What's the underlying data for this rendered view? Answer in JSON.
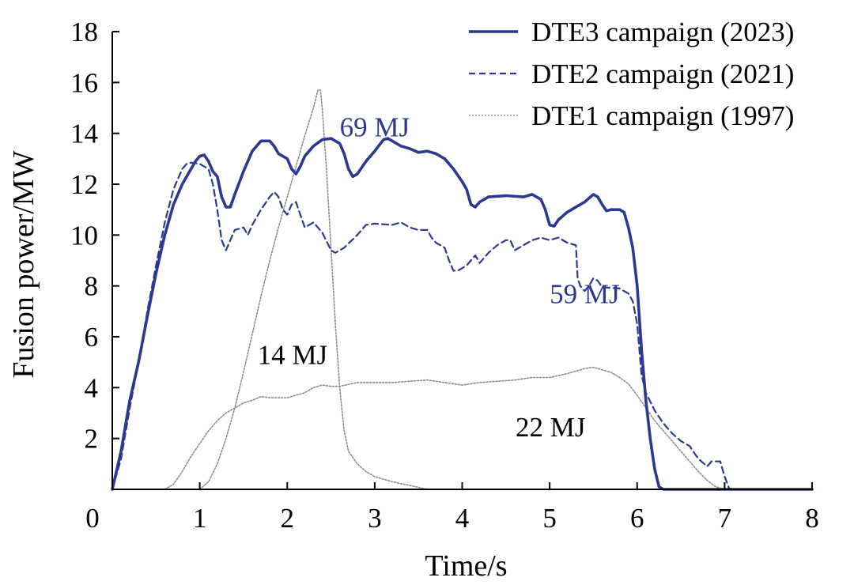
{
  "chart_data": {
    "type": "line",
    "xlabel": "Time/s",
    "ylabel": "Fusion power/MW",
    "xlim": [
      0,
      8
    ],
    "ylim": [
      0,
      18
    ],
    "xticks": [
      "0",
      "1",
      "2",
      "3",
      "4",
      "5",
      "6",
      "7",
      "8"
    ],
    "yticks": [
      "2",
      "4",
      "6",
      "8",
      "10",
      "12",
      "14",
      "16",
      "18"
    ],
    "grid": false,
    "legend_position": "top-right",
    "colors": {
      "dte3": "#2b3990",
      "dte2": "#2b3990",
      "dte1": "#8c8c8c",
      "axis": "#000000"
    },
    "series": [
      {
        "name": "DTE3 campaign (2023)",
        "style": "solid",
        "color": "#2b3990",
        "points": [
          [
            0,
            0
          ],
          [
            0.1,
            1.5
          ],
          [
            0.2,
            3.5
          ],
          [
            0.3,
            5
          ],
          [
            0.4,
            6.8
          ],
          [
            0.5,
            8.5
          ],
          [
            0.6,
            10
          ],
          [
            0.7,
            11.2
          ],
          [
            0.8,
            12
          ],
          [
            0.9,
            12.6
          ],
          [
            0.95,
            12.9
          ],
          [
            1.0,
            13.1
          ],
          [
            1.05,
            13.15
          ],
          [
            1.1,
            12.9
          ],
          [
            1.15,
            12.5
          ],
          [
            1.2,
            12.3
          ],
          [
            1.25,
            11.5
          ],
          [
            1.3,
            11.1
          ],
          [
            1.35,
            11.1
          ],
          [
            1.4,
            11.6
          ],
          [
            1.5,
            12.5
          ],
          [
            1.6,
            13.3
          ],
          [
            1.7,
            13.7
          ],
          [
            1.8,
            13.7
          ],
          [
            1.85,
            13.5
          ],
          [
            1.9,
            13.2
          ],
          [
            2.0,
            13.0
          ],
          [
            2.05,
            12.6
          ],
          [
            2.1,
            12.4
          ],
          [
            2.15,
            12.7
          ],
          [
            2.2,
            13.1
          ],
          [
            2.3,
            13.5
          ],
          [
            2.4,
            13.75
          ],
          [
            2.5,
            13.8
          ],
          [
            2.6,
            13.6
          ],
          [
            2.65,
            13.2
          ],
          [
            2.7,
            12.6
          ],
          [
            2.75,
            12.3
          ],
          [
            2.8,
            12.4
          ],
          [
            2.9,
            12.9
          ],
          [
            3.0,
            13.3
          ],
          [
            3.1,
            13.75
          ],
          [
            3.15,
            13.8
          ],
          [
            3.3,
            13.5
          ],
          [
            3.4,
            13.4
          ],
          [
            3.5,
            13.25
          ],
          [
            3.6,
            13.3
          ],
          [
            3.7,
            13.2
          ],
          [
            3.8,
            13.0
          ],
          [
            3.9,
            12.6
          ],
          [
            4.0,
            12.1
          ],
          [
            4.05,
            11.8
          ],
          [
            4.1,
            11.2
          ],
          [
            4.15,
            11.1
          ],
          [
            4.2,
            11.3
          ],
          [
            4.3,
            11.5
          ],
          [
            4.5,
            11.55
          ],
          [
            4.7,
            11.5
          ],
          [
            4.8,
            11.6
          ],
          [
            4.9,
            11.4
          ],
          [
            4.95,
            11.0
          ],
          [
            5.0,
            10.4
          ],
          [
            5.05,
            10.35
          ],
          [
            5.1,
            10.6
          ],
          [
            5.2,
            10.9
          ],
          [
            5.3,
            11.1
          ],
          [
            5.4,
            11.3
          ],
          [
            5.5,
            11.6
          ],
          [
            5.55,
            11.5
          ],
          [
            5.6,
            11.2
          ],
          [
            5.65,
            10.95
          ],
          [
            5.7,
            11.0
          ],
          [
            5.8,
            11.0
          ],
          [
            5.85,
            10.9
          ],
          [
            5.9,
            10.3
          ],
          [
            5.95,
            9.5
          ],
          [
            6.0,
            8.0
          ],
          [
            6.05,
            5.5
          ],
          [
            6.1,
            3.5
          ],
          [
            6.15,
            2.0
          ],
          [
            6.2,
            0.8
          ],
          [
            6.25,
            0.1
          ],
          [
            6.3,
            0
          ],
          [
            8,
            0
          ]
        ]
      },
      {
        "name": "DTE2 campaign (2021)",
        "style": "dashed",
        "color": "#2b3990",
        "points": [
          [
            0,
            0
          ],
          [
            0.1,
            1.2
          ],
          [
            0.2,
            3.2
          ],
          [
            0.3,
            5.0
          ],
          [
            0.4,
            7.0
          ],
          [
            0.5,
            8.8
          ],
          [
            0.6,
            10.5
          ],
          [
            0.7,
            11.8
          ],
          [
            0.8,
            12.6
          ],
          [
            0.85,
            12.8
          ],
          [
            0.9,
            12.85
          ],
          [
            1.0,
            12.8
          ],
          [
            1.1,
            12.6
          ],
          [
            1.15,
            12.0
          ],
          [
            1.2,
            11.0
          ],
          [
            1.25,
            9.8
          ],
          [
            1.3,
            9.4
          ],
          [
            1.35,
            9.8
          ],
          [
            1.4,
            10.2
          ],
          [
            1.5,
            10.3
          ],
          [
            1.55,
            10.0
          ],
          [
            1.6,
            10.4
          ],
          [
            1.7,
            11.0
          ],
          [
            1.8,
            11.5
          ],
          [
            1.85,
            11.7
          ],
          [
            1.9,
            11.5
          ],
          [
            1.95,
            11.0
          ],
          [
            2.0,
            10.8
          ],
          [
            2.05,
            11.2
          ],
          [
            2.1,
            11.3
          ],
          [
            2.15,
            10.8
          ],
          [
            2.2,
            10.3
          ],
          [
            2.3,
            10.5
          ],
          [
            2.4,
            10.1
          ],
          [
            2.5,
            9.4
          ],
          [
            2.55,
            9.3
          ],
          [
            2.65,
            9.5
          ],
          [
            2.8,
            10.0
          ],
          [
            2.9,
            10.4
          ],
          [
            3.0,
            10.45
          ],
          [
            3.2,
            10.4
          ],
          [
            3.3,
            10.5
          ],
          [
            3.4,
            10.3
          ],
          [
            3.5,
            10.2
          ],
          [
            3.6,
            10.2
          ],
          [
            3.65,
            9.9
          ],
          [
            3.7,
            9.7
          ],
          [
            3.8,
            9.5
          ],
          [
            3.85,
            9.0
          ],
          [
            3.9,
            8.6
          ],
          [
            3.95,
            8.6
          ],
          [
            4.05,
            8.8
          ],
          [
            4.15,
            9.2
          ],
          [
            4.2,
            8.9
          ],
          [
            4.3,
            9.3
          ],
          [
            4.4,
            9.6
          ],
          [
            4.5,
            9.8
          ],
          [
            4.55,
            9.8
          ],
          [
            4.6,
            9.4
          ],
          [
            4.7,
            9.6
          ],
          [
            4.8,
            9.8
          ],
          [
            4.9,
            9.9
          ],
          [
            5.0,
            9.8
          ],
          [
            5.1,
            9.9
          ],
          [
            5.2,
            9.7
          ],
          [
            5.3,
            9.6
          ],
          [
            5.32,
            8.3
          ],
          [
            5.35,
            8.0
          ],
          [
            5.4,
            7.8
          ],
          [
            5.45,
            8.0
          ],
          [
            5.5,
            8.3
          ],
          [
            5.55,
            8.2
          ],
          [
            5.6,
            7.95
          ],
          [
            5.8,
            7.9
          ],
          [
            5.9,
            7.7
          ],
          [
            5.95,
            7.4
          ],
          [
            6.0,
            6.5
          ],
          [
            6.05,
            4.5
          ],
          [
            6.1,
            3.8
          ],
          [
            6.2,
            3.1
          ],
          [
            6.3,
            2.6
          ],
          [
            6.4,
            2.2
          ],
          [
            6.5,
            1.9
          ],
          [
            6.6,
            1.7
          ],
          [
            6.7,
            1.2
          ],
          [
            6.8,
            0.9
          ],
          [
            6.85,
            1.1
          ],
          [
            6.95,
            1.1
          ],
          [
            7.0,
            0.5
          ],
          [
            7.05,
            0.05
          ],
          [
            7.1,
            0
          ],
          [
            8,
            0
          ]
        ]
      },
      {
        "name": "DTE1 campaign (1997)",
        "style": "dotted",
        "color": "#8c8c8c",
        "points": [
          [
            1.0,
            0
          ],
          [
            1.1,
            0.3
          ],
          [
            1.2,
            1.0
          ],
          [
            1.3,
            2.0
          ],
          [
            1.4,
            3.2
          ],
          [
            1.5,
            4.6
          ],
          [
            1.6,
            6.1
          ],
          [
            1.7,
            7.6
          ],
          [
            1.8,
            9.0
          ],
          [
            1.9,
            10.3
          ],
          [
            2.0,
            11.5
          ],
          [
            2.1,
            12.7
          ],
          [
            2.2,
            13.9
          ],
          [
            2.3,
            15.0
          ],
          [
            2.35,
            15.7
          ],
          [
            2.38,
            15.7
          ],
          [
            2.4,
            15.0
          ],
          [
            2.45,
            12.5
          ],
          [
            2.5,
            9.5
          ],
          [
            2.55,
            6.5
          ],
          [
            2.6,
            4.0
          ],
          [
            2.65,
            2.3
          ],
          [
            2.7,
            1.5
          ],
          [
            2.8,
            1.0
          ],
          [
            2.9,
            0.7
          ],
          [
            3.0,
            0.5
          ],
          [
            3.2,
            0.3
          ],
          [
            3.5,
            0.08
          ],
          [
            3.6,
            0
          ]
        ]
      },
      {
        "name": "",
        "style": "dotted",
        "color": "#8c8c8c",
        "points": [
          [
            0.6,
            0
          ],
          [
            0.7,
            0.2
          ],
          [
            0.8,
            0.7
          ],
          [
            0.9,
            1.3
          ],
          [
            1.0,
            1.8
          ],
          [
            1.1,
            2.3
          ],
          [
            1.2,
            2.7
          ],
          [
            1.3,
            3.0
          ],
          [
            1.4,
            3.2
          ],
          [
            1.5,
            3.4
          ],
          [
            1.6,
            3.5
          ],
          [
            1.7,
            3.65
          ],
          [
            1.8,
            3.6
          ],
          [
            1.9,
            3.6
          ],
          [
            2.0,
            3.6
          ],
          [
            2.1,
            3.7
          ],
          [
            2.2,
            3.8
          ],
          [
            2.3,
            4.0
          ],
          [
            2.4,
            4.1
          ],
          [
            2.5,
            4.05
          ],
          [
            2.6,
            4.05
          ],
          [
            2.8,
            4.2
          ],
          [
            3.0,
            4.2
          ],
          [
            3.2,
            4.2
          ],
          [
            3.4,
            4.25
          ],
          [
            3.6,
            4.3
          ],
          [
            3.8,
            4.2
          ],
          [
            4.0,
            4.1
          ],
          [
            4.2,
            4.2
          ],
          [
            4.4,
            4.25
          ],
          [
            4.6,
            4.3
          ],
          [
            4.8,
            4.4
          ],
          [
            5.0,
            4.4
          ],
          [
            5.2,
            4.55
          ],
          [
            5.4,
            4.75
          ],
          [
            5.5,
            4.8
          ],
          [
            5.6,
            4.7
          ],
          [
            5.7,
            4.6
          ],
          [
            5.8,
            4.4
          ],
          [
            5.9,
            4.15
          ],
          [
            6.0,
            3.7
          ],
          [
            6.1,
            3.2
          ],
          [
            6.2,
            2.7
          ],
          [
            6.3,
            2.3
          ],
          [
            6.4,
            1.9
          ],
          [
            6.5,
            1.5
          ],
          [
            6.6,
            1.1
          ],
          [
            6.7,
            0.7
          ],
          [
            6.8,
            0.35
          ],
          [
            6.9,
            0.1
          ],
          [
            7.0,
            0
          ]
        ]
      }
    ],
    "annotations": [
      {
        "text": "69 MJ",
        "x": 3.0,
        "y": 14.25,
        "color": "#2b3990"
      },
      {
        "text": "59 MJ",
        "x": 5.4,
        "y": 7.7,
        "color": "#2b3990"
      },
      {
        "text": "14 MJ",
        "x": 2.06,
        "y": 5.3,
        "color": "#000000"
      },
      {
        "text": "22 MJ",
        "x": 5.01,
        "y": 2.45,
        "color": "#000000"
      }
    ]
  }
}
